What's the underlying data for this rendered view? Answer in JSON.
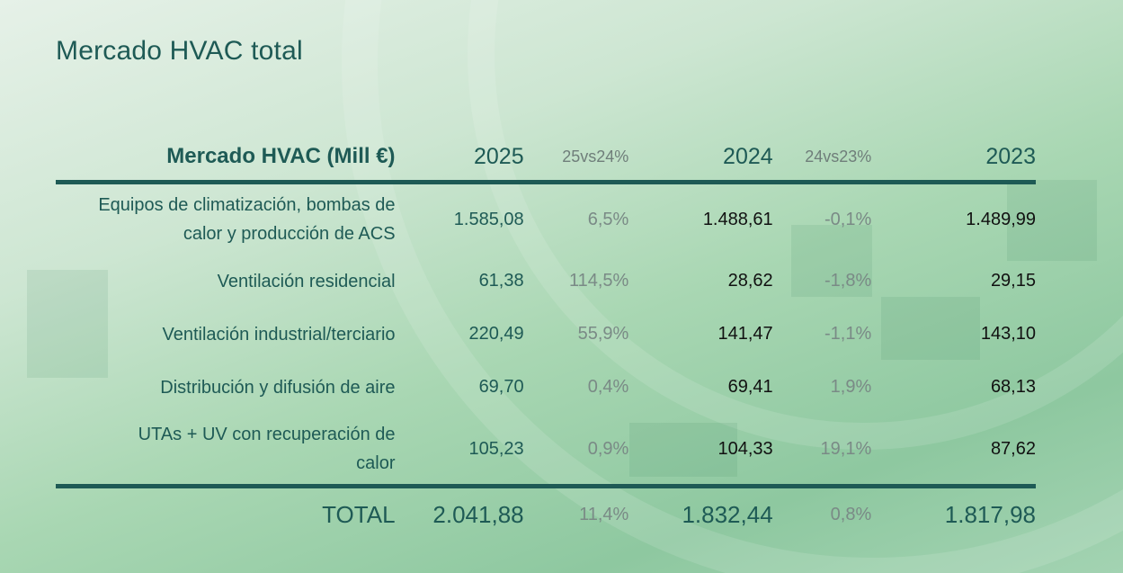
{
  "title": "Mercado HVAC total",
  "table": {
    "headers": [
      "Mercado HVAC (Mill €)",
      "2025",
      "25vs24%",
      "2024",
      "24vs23%",
      "2023"
    ],
    "rows": [
      {
        "label_line1": "Equipos de climatización, bombas de",
        "label_line2": "calor y producción de ACS",
        "v2025": "1.585,08",
        "p2524": "6,5%",
        "v2024": "1.488,61",
        "p2423": "-0,1%",
        "v2023": "1.489,99"
      },
      {
        "label_line1": "Ventilación residencial",
        "label_line2": "",
        "v2025": "61,38",
        "p2524": "114,5%",
        "v2024": "28,62",
        "p2423": "-1,8%",
        "v2023": "29,15"
      },
      {
        "label_line1": "Ventilación industrial/terciario",
        "label_line2": "",
        "v2025": "220,49",
        "p2524": "55,9%",
        "v2024": "141,47",
        "p2423": "-1,1%",
        "v2023": "143,10"
      },
      {
        "label_line1": "Distribución y difusión de aire",
        "label_line2": "",
        "v2025": "69,70",
        "p2524": "0,4%",
        "v2024": "69,41",
        "p2423": "1,9%",
        "v2023": "68,13"
      },
      {
        "label_line1": "UTAs + UV con recuperación de",
        "label_line2": "calor",
        "v2025": "105,23",
        "p2524": "0,9%",
        "v2024": "104,33",
        "p2423": "19,1%",
        "v2023": "87,62"
      }
    ],
    "total": {
      "label": "TOTAL",
      "v2025": "2.041,88",
      "p2524": "11,4%",
      "v2024": "1.832,44",
      "p2423": "0,8%",
      "v2023": "1.817,98"
    }
  }
}
